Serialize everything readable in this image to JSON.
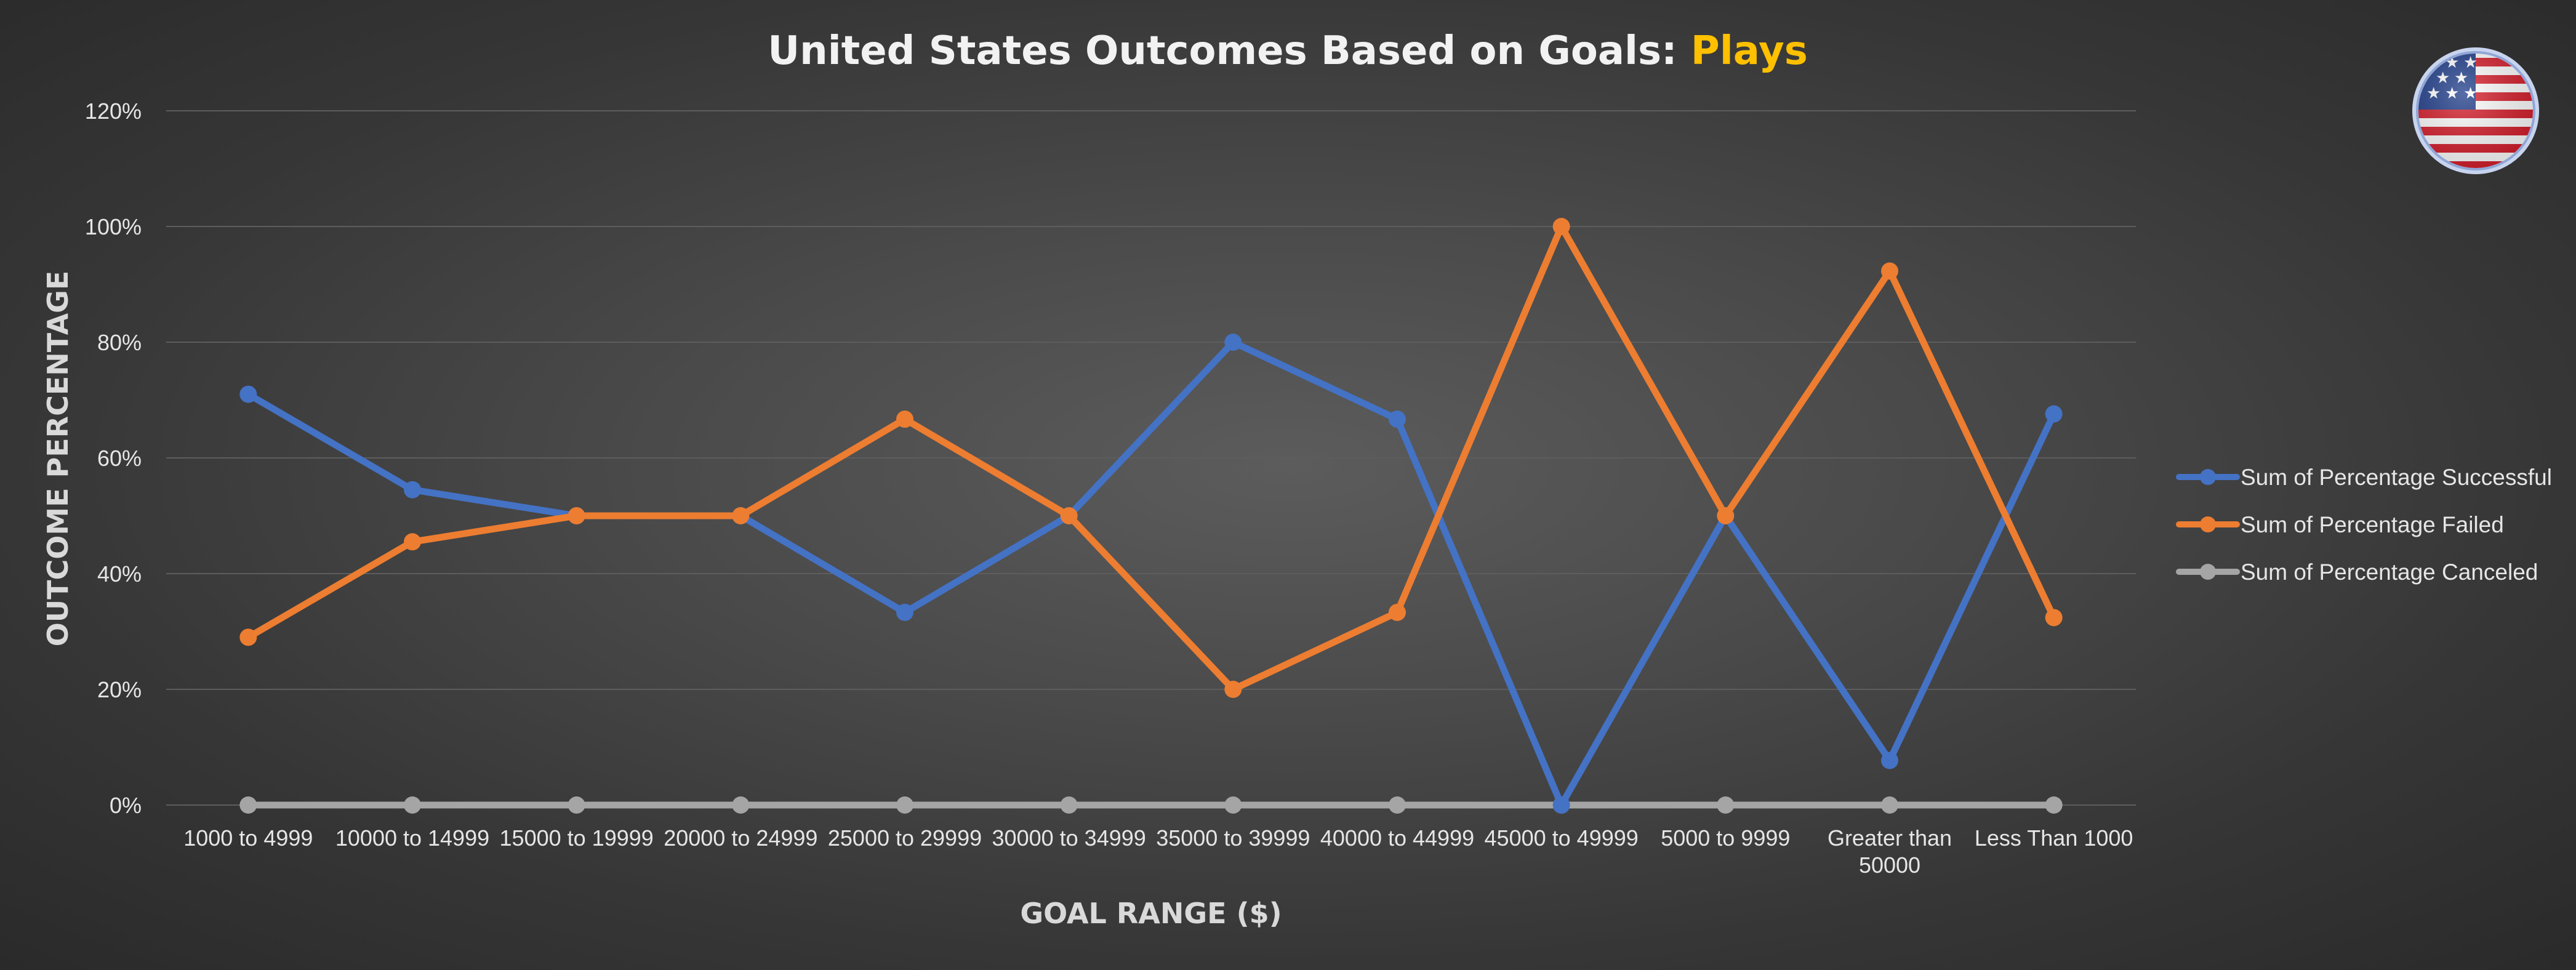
{
  "chart_data": {
    "type": "line",
    "title": "United States Outcomes Based on Goals: ",
    "title_highlight": "Plays",
    "xlabel": "GOAL RANGE ($)",
    "ylabel": "OUTCOME PERCENTAGE",
    "ylim": [
      0,
      1.2
    ],
    "yticks": [
      "0%",
      "20%",
      "40%",
      "60%",
      "80%",
      "100%",
      "120%"
    ],
    "ytick_values": [
      0,
      0.2,
      0.4,
      0.6,
      0.8,
      1.0,
      1.2
    ],
    "grid": true,
    "legend_position": "right",
    "categories": [
      "1000 to 4999",
      "10000 to 14999",
      "15000 to 19999",
      "20000 to 24999",
      "25000 to 29999",
      "30000 to 34999",
      "35000 to 39999",
      "40000 to 44999",
      "45000 to 49999",
      "5000 to 9999",
      "Greater than 50000",
      "Less Than 1000"
    ],
    "series": [
      {
        "name": "Sum of Percentage Successful",
        "color": "#4472C4",
        "values": [
          0.71,
          0.545,
          0.5,
          0.5,
          0.333,
          0.5,
          0.8,
          0.667,
          0.0,
          0.5,
          0.077,
          0.676
        ]
      },
      {
        "name": "Sum of Percentage Failed",
        "color": "#ED7D31",
        "values": [
          0.29,
          0.455,
          0.5,
          0.5,
          0.667,
          0.5,
          0.2,
          0.333,
          1.0,
          0.5,
          0.923,
          0.324
        ]
      },
      {
        "name": "Sum of Percentage Canceled",
        "color": "#A5A5A5",
        "values": [
          0,
          0,
          0,
          0,
          0,
          0,
          0,
          0,
          0,
          0,
          0,
          0
        ]
      }
    ],
    "colors": {
      "title": "#f2f2f2",
      "title_highlight": "#FFC000",
      "grid": "#5d5d5d"
    },
    "icon": "us-flag-icon"
  }
}
